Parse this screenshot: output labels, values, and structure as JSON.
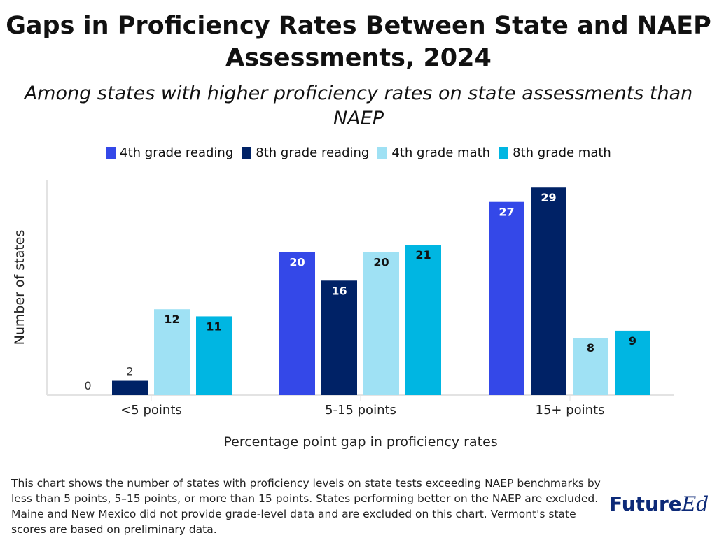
{
  "chart_data": {
    "type": "bar",
    "title": "Gaps in Proficiency Rates Between State and NAEP Assessments, 2024",
    "subtitle": "Among states with higher proficiency rates on state assessments than NAEP",
    "xlabel": "Percentage point gap in proficiency rates",
    "ylabel": "Number of states",
    "ylim": [
      0,
      30
    ],
    "grid": false,
    "legend_position": "top",
    "categories": [
      "<5 points",
      "5-15 points",
      "15+ points"
    ],
    "series": [
      {
        "name": "4th grade reading",
        "color": "#3448e8",
        "label_color": "#ffffff",
        "values": [
          0,
          20,
          27
        ]
      },
      {
        "name": "8th grade reading",
        "color": "#002266",
        "label_color": "#ffffff",
        "values": [
          2,
          16,
          29
        ]
      },
      {
        "name": "4th grade math",
        "color": "#9fe1f4",
        "label_color": "#111111",
        "values": [
          12,
          20,
          8
        ]
      },
      {
        "name": "8th grade math",
        "color": "#00b6e2",
        "label_color": "#111111",
        "values": [
          11,
          21,
          9
        ]
      }
    ]
  },
  "note": "This chart shows the number of states with proficiency levels on state tests exceeding NAEP benchmarks by less than 5 points, 5–15 points, or more than 15 points. States performing better on the NAEP are excluded. Maine and New Mexico did not provide grade-level data and are excluded on this chart. Vermont's state scores are based on preliminary data.",
  "logo": {
    "part1": "Future",
    "part2": "Ed"
  }
}
